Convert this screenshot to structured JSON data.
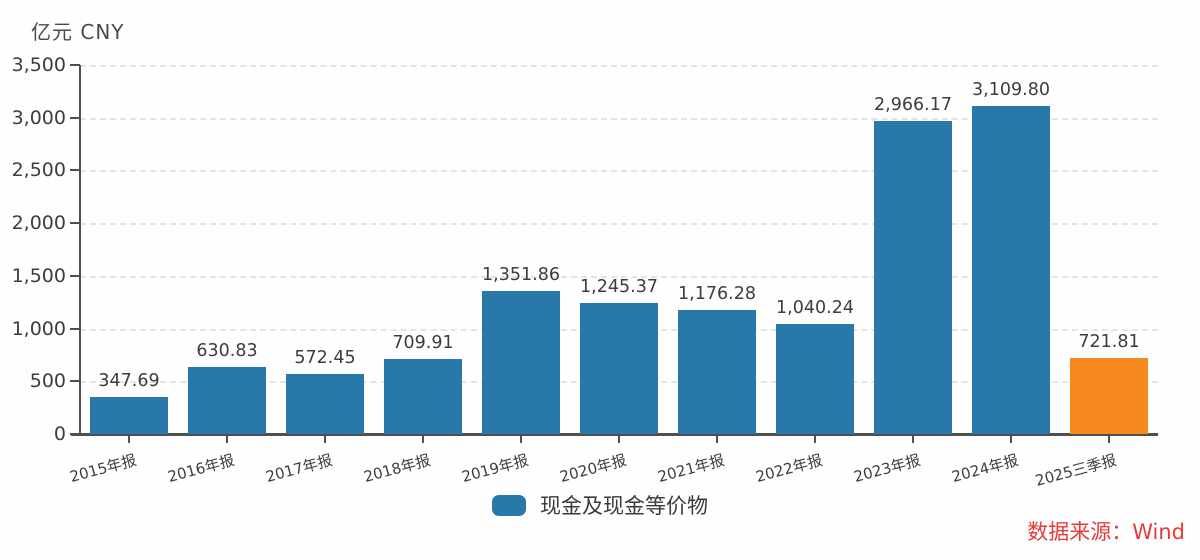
{
  "chart": {
    "unit_label": "亿元  CNY",
    "legend": {
      "label": "现金及现金等价物"
    },
    "source_label": "数据来源：Wind",
    "colors": {
      "bar_default": "#2878a8",
      "bar_highlight": "#f5891d",
      "source_text": "#e23c3c",
      "axis": "#4f4f4f",
      "text": "#3d3d3d",
      "gridline": "#e4e4e4"
    }
  },
  "chart_data": {
    "type": "bar",
    "title": "",
    "ylabel": "亿元 CNY",
    "xlabel": "",
    "categories": [
      "2015年报",
      "2016年报",
      "2017年报",
      "2018年报",
      "2019年报",
      "2020年报",
      "2021年报",
      "2022年报",
      "2023年报",
      "2024年报",
      "2025三季报"
    ],
    "series": [
      {
        "name": "现金及现金等价物",
        "values": [
          347.69,
          630.83,
          572.45,
          709.91,
          1351.86,
          1245.37,
          1176.28,
          1040.24,
          2966.17,
          3109.8,
          721.81
        ],
        "value_labels": [
          "347.69",
          "630.83",
          "572.45",
          "709.91",
          "1,351.86",
          "1,245.37",
          "1,176.28",
          "1,040.24",
          "2,966.17",
          "3,109.80",
          "721.81"
        ]
      }
    ],
    "highlight_index": 10,
    "ylim": [
      0,
      3500
    ],
    "ytick_step": 500,
    "ytick_labels": [
      "0",
      "500",
      "1,000",
      "1,500",
      "2,000",
      "2,500",
      "3,000",
      "3,500"
    ],
    "grid": "horizontal-dashed",
    "legend_position": "bottom-center",
    "annotations": [
      "数据来源：Wind"
    ]
  }
}
